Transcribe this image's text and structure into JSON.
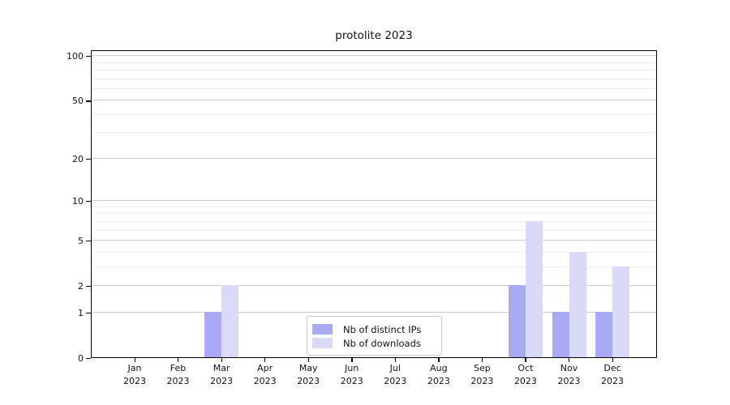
{
  "chart_data": {
    "type": "bar",
    "title": "protolite 2023",
    "categories": [
      "Jan",
      "Feb",
      "Mar",
      "Apr",
      "May",
      "Jun",
      "Jul",
      "Aug",
      "Sep",
      "Oct",
      "Nov",
      "Dec"
    ],
    "year": "2023",
    "series": [
      {
        "name": "Nb of distinct IPs",
        "color": "#a9a9f4",
        "values": [
          0,
          0,
          1,
          0,
          0,
          0,
          0,
          0,
          0,
          2,
          1,
          1
        ]
      },
      {
        "name": "Nb of downloads",
        "color": "#d9d9f8",
        "values": [
          0,
          0,
          2,
          0,
          0,
          0,
          0,
          0,
          0,
          7,
          4,
          3
        ]
      }
    ],
    "yscale": "log1p",
    "ylim": [
      0,
      110
    ],
    "yticks_major": [
      0,
      1,
      2,
      5,
      10,
      20,
      50,
      100
    ],
    "yticks_minor": [
      3,
      4,
      6,
      7,
      8,
      9,
      30,
      40,
      60,
      70,
      80,
      90
    ],
    "grid": "horizontal",
    "legend_position": "bottom-center",
    "colors": {
      "grid_major": "#c9c9c9",
      "grid_minor": "#eeeeee",
      "axis": "#000000"
    }
  }
}
